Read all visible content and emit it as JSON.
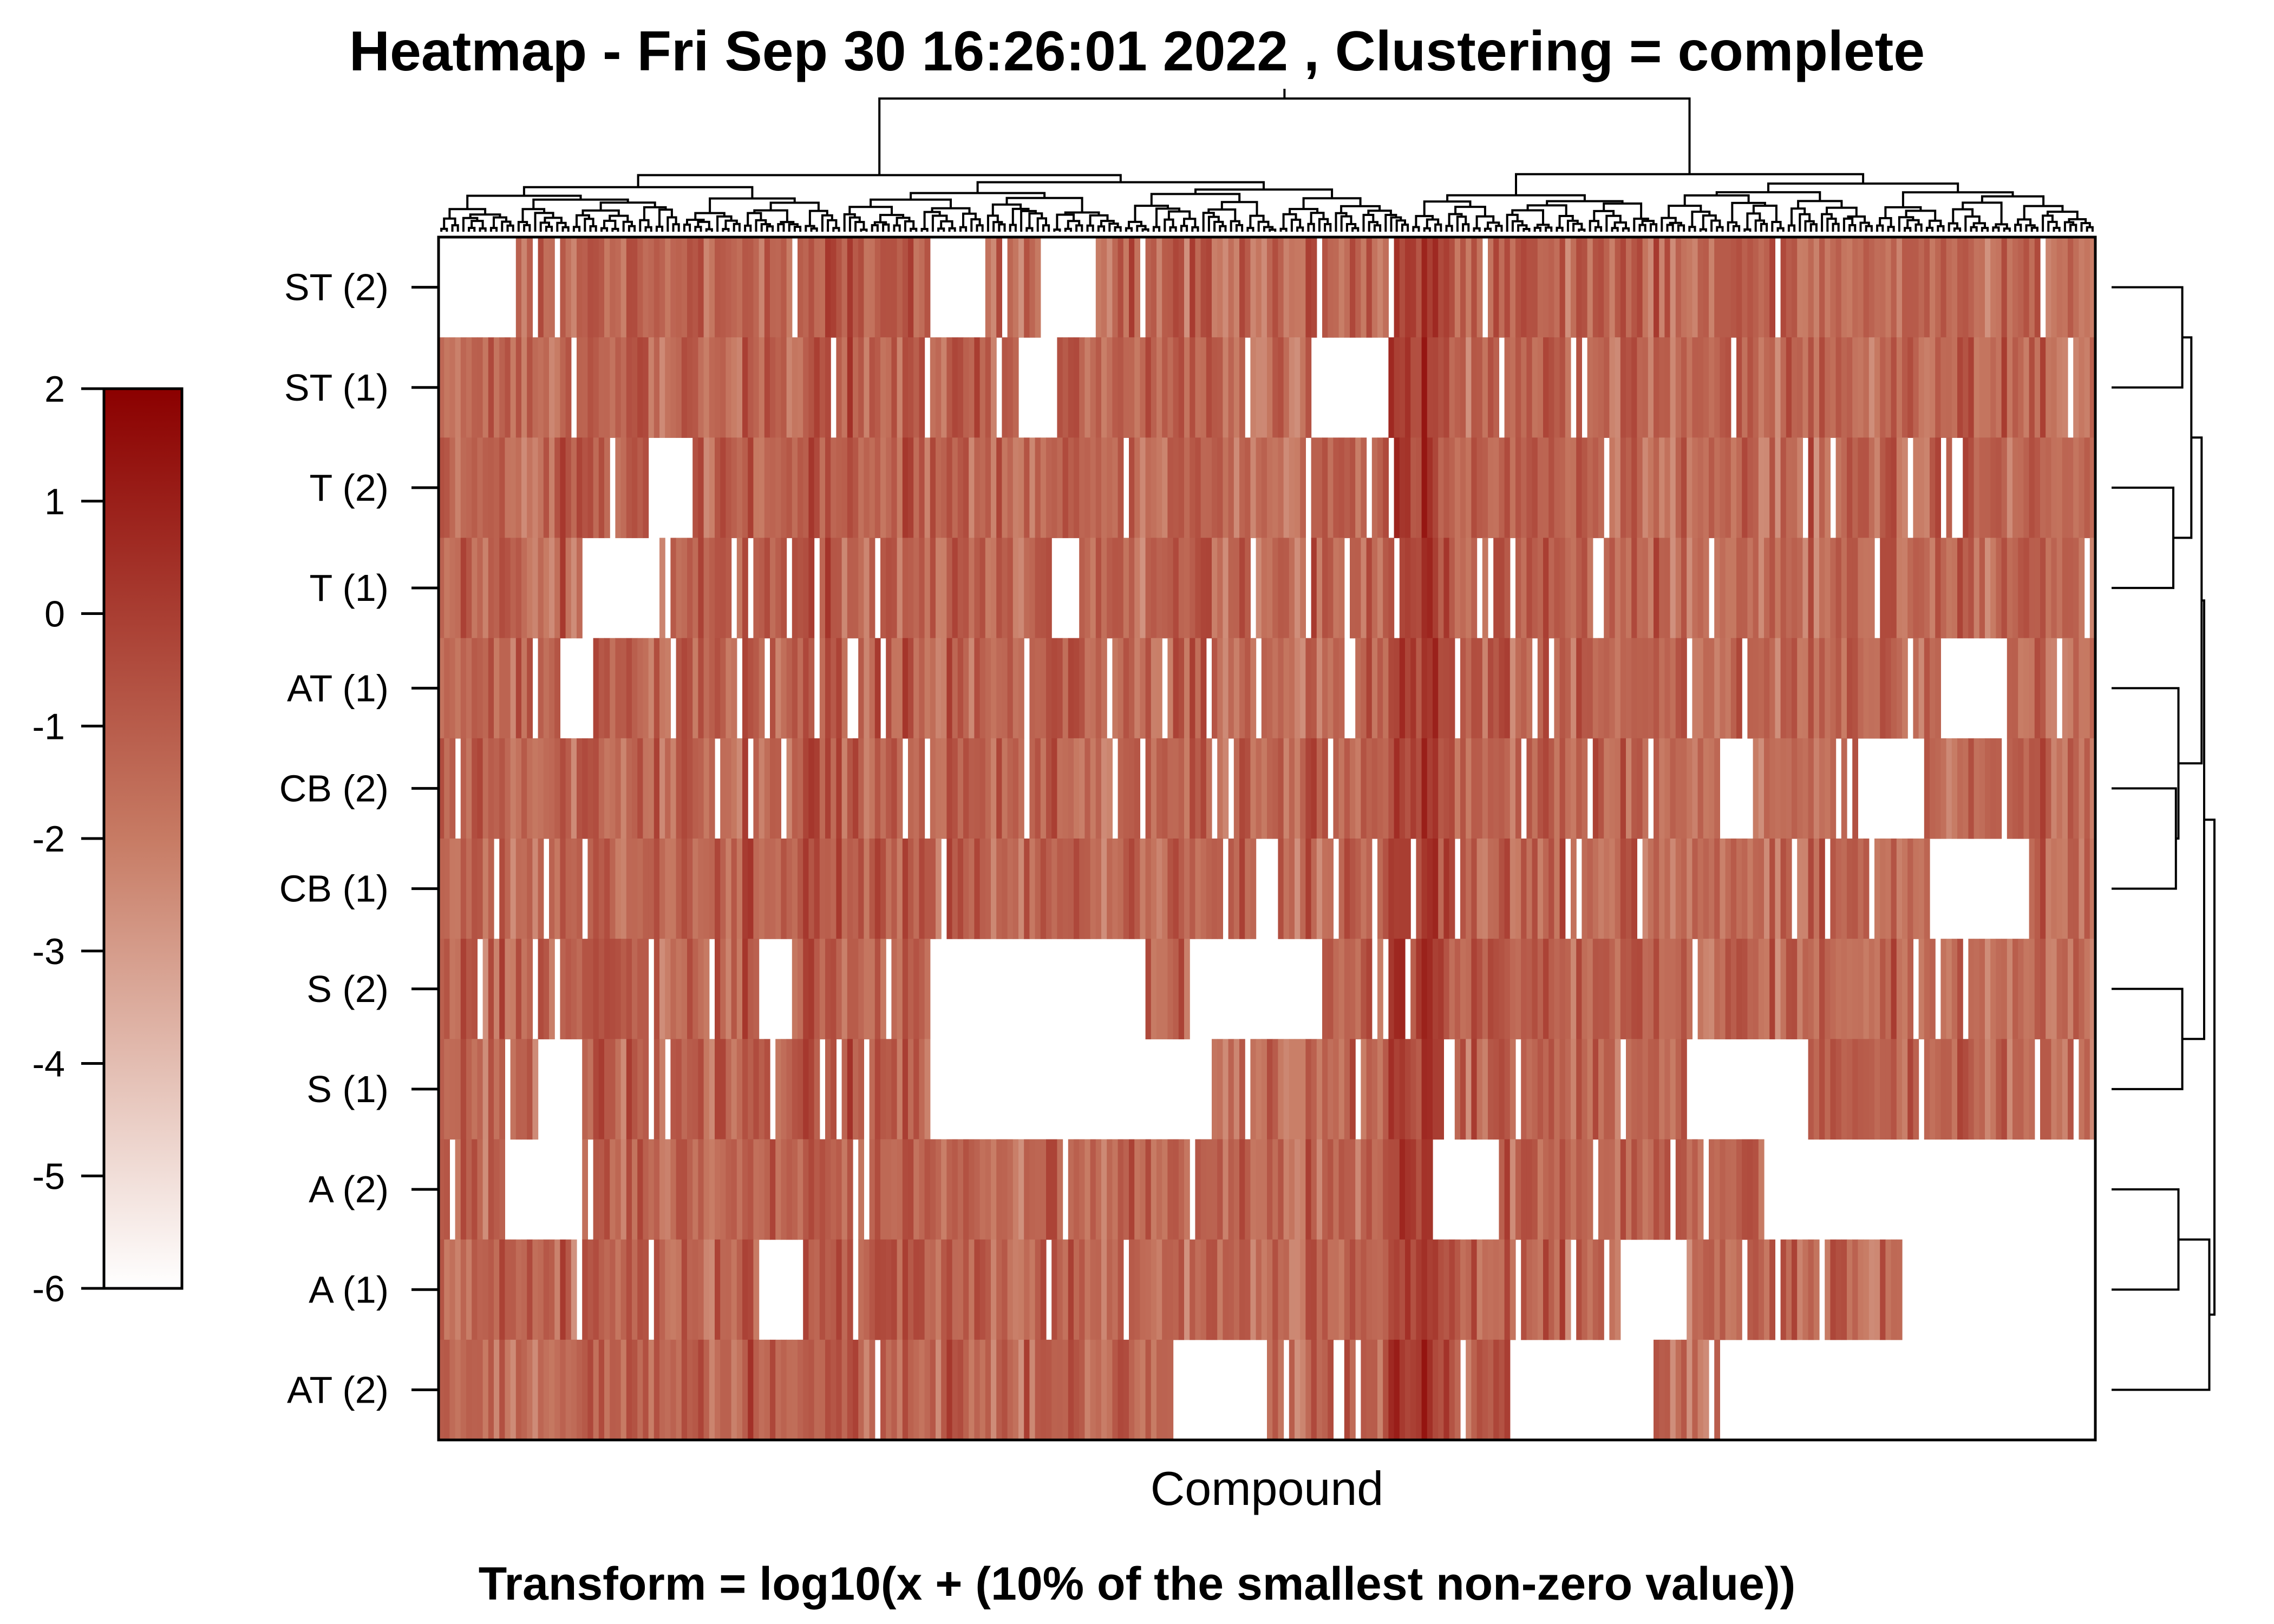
{
  "title": "Heatmap -  Fri Sep 30 16:26:01 2022 , Clustering =  complete",
  "caption": "Transform = log10(x + (10% of the smallest non-zero value))",
  "colors": {
    "low": "#ffffff",
    "mid": "#c77b64",
    "high": "#8b0000",
    "line": "#000000"
  },
  "chart_data": {
    "type": "heatmap",
    "title": "Heatmap -  Fri Sep 30 16:26:01 2022 , Clustering =  complete",
    "xlabel": "Compound",
    "ylabel": "",
    "rows": [
      "ST (2)",
      "ST (1)",
      "T (2)",
      "T (1)",
      "AT (1)",
      "CB (2)",
      "CB (1)",
      "S (2)",
      "S (1)",
      "A (2)",
      "A (1)",
      "AT (2)"
    ],
    "column_count": 300,
    "value_range": [
      -6,
      2
    ],
    "colorbar": {
      "ticks": [
        "2",
        "1",
        "0",
        "-1",
        "-2",
        "-3",
        "-4",
        "-5",
        "-6"
      ],
      "min": -6,
      "max": 2
    },
    "row_dendrogram": "right",
    "column_dendrogram": "top",
    "blank_regions": [
      {
        "row": 0,
        "from": 0,
        "to": 14
      },
      {
        "row": 0,
        "from": 89,
        "to": 99
      },
      {
        "row": 0,
        "from": 109,
        "to": 119
      },
      {
        "row": 1,
        "from": 158,
        "to": 172
      },
      {
        "row": 1,
        "from": 105,
        "to": 112
      },
      {
        "row": 2,
        "from": 38,
        "to": 46
      },
      {
        "row": 3,
        "from": 26,
        "to": 40
      },
      {
        "row": 3,
        "from": 111,
        "to": 116
      },
      {
        "row": 4,
        "from": 22,
        "to": 28
      },
      {
        "row": 4,
        "from": 272,
        "to": 283
      },
      {
        "row": 5,
        "from": 257,
        "to": 269
      },
      {
        "row": 5,
        "from": 232,
        "to": 238
      },
      {
        "row": 6,
        "from": 270,
        "to": 288
      },
      {
        "row": 6,
        "from": 148,
        "to": 152
      },
      {
        "row": 7,
        "from": 89,
        "to": 128
      },
      {
        "row": 7,
        "from": 136,
        "to": 160
      },
      {
        "row": 7,
        "from": 58,
        "to": 64
      },
      {
        "row": 8,
        "from": 89,
        "to": 140
      },
      {
        "row": 8,
        "from": 18,
        "to": 26
      },
      {
        "row": 8,
        "from": 226,
        "to": 248
      },
      {
        "row": 9,
        "from": 12,
        "to": 26
      },
      {
        "row": 9,
        "from": 240,
        "to": 300
      },
      {
        "row": 9,
        "from": 180,
        "to": 192
      },
      {
        "row": 10,
        "from": 58,
        "to": 66
      },
      {
        "row": 10,
        "from": 215,
        "to": 226
      },
      {
        "row": 10,
        "from": 265,
        "to": 300
      },
      {
        "row": 11,
        "from": 133,
        "to": 150
      },
      {
        "row": 11,
        "from": 195,
        "to": 220
      },
      {
        "row": 11,
        "from": 232,
        "to": 300
      }
    ]
  }
}
